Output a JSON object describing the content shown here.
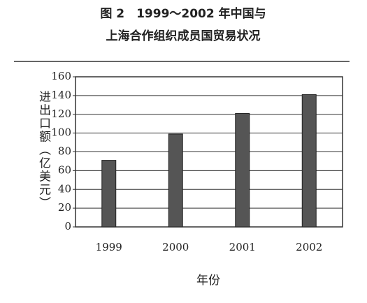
{
  "chart_data": {
    "type": "bar",
    "title": [
      "图 2　1999～2002 年中国与",
      "上海合作组织成员国贸易状况"
    ],
    "x_label": "年份",
    "y_label": "进出口额（亿美元）",
    "categories": [
      "1999",
      "2000",
      "2001",
      "2002"
    ],
    "values": [
      71,
      99,
      121,
      141
    ],
    "color": "#555555",
    "ylim": [
      0,
      160
    ],
    "yticks": [
      0,
      20,
      40,
      60,
      80,
      100,
      120,
      140,
      160
    ],
    "grid": true
  }
}
